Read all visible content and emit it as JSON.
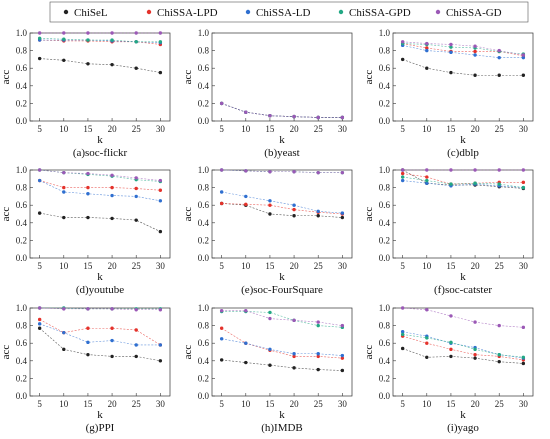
{
  "chart_data": {
    "type": "line",
    "x": [
      5,
      10,
      15,
      20,
      25,
      30
    ],
    "xlabel": "k",
    "ylabel": "acc",
    "ylim": [
      0,
      1.0
    ],
    "yticks": [
      "0.0",
      "0.2",
      "0.4",
      "0.6",
      "0.8",
      "1.0"
    ],
    "legend": {
      "placement": "top",
      "entries": [
        {
          "name": "ChiSeL",
          "color": "#222222"
        },
        {
          "name": "ChiSSA-LPD",
          "color": "#e4322b"
        },
        {
          "name": "ChiSSA-LD",
          "color": "#2f6fd0"
        },
        {
          "name": "ChiSSA-GPD",
          "color": "#22a884"
        },
        {
          "name": "ChiSSA-GD",
          "color": "#9b59b6"
        }
      ]
    },
    "panels": [
      {
        "caption": "(a)soc-flickr",
        "series": [
          {
            "name": "ChiSeL",
            "values": [
              0.71,
              0.69,
              0.65,
              0.64,
              0.6,
              0.55
            ]
          },
          {
            "name": "ChiSSA-LPD",
            "values": [
              0.92,
              0.91,
              0.91,
              0.9,
              0.9,
              0.87
            ]
          },
          {
            "name": "ChiSSA-LD",
            "values": [
              0.92,
              0.92,
              0.92,
              0.91,
              0.9,
              0.89
            ]
          },
          {
            "name": "ChiSSA-GPD",
            "values": [
              0.94,
              0.93,
              0.92,
              0.92,
              0.9,
              0.9
            ]
          },
          {
            "name": "ChiSSA-GD",
            "values": [
              1.0,
              1.0,
              1.0,
              1.0,
              1.0,
              1.0
            ]
          }
        ]
      },
      {
        "caption": "(b)yeast",
        "series": [
          {
            "name": "ChiSeL",
            "values": [
              0.2,
              0.1,
              0.06,
              0.05,
              0.04,
              0.04
            ]
          },
          {
            "name": "ChiSSA-LPD",
            "values": [
              0.2,
              0.1,
              0.06,
              0.05,
              0.04,
              0.04
            ]
          },
          {
            "name": "ChiSSA-LD",
            "values": [
              0.2,
              0.1,
              0.06,
              0.05,
              0.04,
              0.04
            ]
          },
          {
            "name": "ChiSSA-GPD",
            "values": [
              0.2,
              0.1,
              0.06,
              0.05,
              0.04,
              0.04
            ]
          },
          {
            "name": "ChiSSA-GD",
            "values": [
              0.2,
              0.1,
              0.06,
              0.05,
              0.04,
              0.04
            ]
          }
        ]
      },
      {
        "caption": "(c)dblp",
        "series": [
          {
            "name": "ChiSeL",
            "values": [
              0.7,
              0.6,
              0.55,
              0.52,
              0.52,
              0.52
            ]
          },
          {
            "name": "ChiSSA-LPD",
            "values": [
              0.88,
              0.83,
              0.79,
              0.79,
              0.79,
              0.74
            ]
          },
          {
            "name": "ChiSSA-LD",
            "values": [
              0.86,
              0.8,
              0.78,
              0.75,
              0.72,
              0.72
            ]
          },
          {
            "name": "ChiSSA-GPD",
            "values": [
              0.88,
              0.87,
              0.84,
              0.83,
              0.79,
              0.76
            ]
          },
          {
            "name": "ChiSSA-GD",
            "values": [
              0.9,
              0.88,
              0.87,
              0.85,
              0.8,
              0.75
            ]
          }
        ]
      },
      {
        "caption": "(d)youtube",
        "series": [
          {
            "name": "ChiSeL",
            "values": [
              0.51,
              0.46,
              0.46,
              0.45,
              0.43,
              0.3
            ]
          },
          {
            "name": "ChiSSA-LPD",
            "values": [
              0.88,
              0.8,
              0.8,
              0.8,
              0.79,
              0.77
            ]
          },
          {
            "name": "ChiSSA-LD",
            "values": [
              0.88,
              0.75,
              0.73,
              0.71,
              0.7,
              0.65
            ]
          },
          {
            "name": "ChiSSA-GPD",
            "values": [
              1.0,
              0.97,
              0.95,
              0.93,
              0.89,
              0.87
            ]
          },
          {
            "name": "ChiSSA-GD",
            "values": [
              1.0,
              0.97,
              0.96,
              0.94,
              0.91,
              0.88
            ]
          }
        ]
      },
      {
        "caption": "(e)soc-FourSquare",
        "series": [
          {
            "name": "ChiSeL",
            "values": [
              0.62,
              0.6,
              0.5,
              0.48,
              0.48,
              0.46
            ]
          },
          {
            "name": "ChiSSA-LPD",
            "values": [
              0.62,
              0.61,
              0.6,
              0.55,
              0.52,
              0.5
            ]
          },
          {
            "name": "ChiSSA-LD",
            "values": [
              0.75,
              0.7,
              0.65,
              0.6,
              0.53,
              0.51
            ]
          },
          {
            "name": "ChiSSA-GPD",
            "values": [
              1.0,
              0.99,
              0.98,
              0.98,
              0.97,
              0.97
            ]
          },
          {
            "name": "ChiSSA-GD",
            "values": [
              1.0,
              0.99,
              0.98,
              0.98,
              0.97,
              0.97
            ]
          }
        ]
      },
      {
        "caption": "(f)soc-catster",
        "series": [
          {
            "name": "ChiSeL",
            "values": [
              1.0,
              0.85,
              0.83,
              0.83,
              0.81,
              0.79
            ]
          },
          {
            "name": "ChiSSA-LPD",
            "values": [
              0.96,
              0.92,
              0.84,
              0.85,
              0.86,
              0.86
            ]
          },
          {
            "name": "ChiSSA-LD",
            "values": [
              0.88,
              0.85,
              0.82,
              0.84,
              0.82,
              0.8
            ]
          },
          {
            "name": "ChiSSA-GPD",
            "values": [
              0.92,
              0.88,
              0.84,
              0.85,
              0.84,
              0.8
            ]
          },
          {
            "name": "ChiSSA-GD",
            "values": [
              1.0,
              1.0,
              1.0,
              1.0,
              1.0,
              1.0
            ]
          }
        ]
      },
      {
        "caption": "(g)PPI",
        "series": [
          {
            "name": "ChiSeL",
            "values": [
              0.77,
              0.53,
              0.47,
              0.45,
              0.45,
              0.4
            ]
          },
          {
            "name": "ChiSSA-LPD",
            "values": [
              0.87,
              0.72,
              0.77,
              0.77,
              0.75,
              0.58
            ]
          },
          {
            "name": "ChiSSA-LD",
            "values": [
              0.82,
              0.72,
              0.61,
              0.63,
              0.58,
              0.58
            ]
          },
          {
            "name": "ChiSSA-GPD",
            "values": [
              1.0,
              1.0,
              0.99,
              0.99,
              0.99,
              0.99
            ]
          },
          {
            "name": "ChiSSA-GD",
            "values": [
              1.0,
              0.99,
              0.99,
              0.99,
              0.98,
              0.98
            ]
          }
        ]
      },
      {
        "caption": "(h)IMDB",
        "series": [
          {
            "name": "ChiSeL",
            "values": [
              0.41,
              0.38,
              0.35,
              0.32,
              0.3,
              0.29
            ]
          },
          {
            "name": "ChiSSA-LPD",
            "values": [
              0.77,
              0.6,
              0.52,
              0.45,
              0.45,
              0.43
            ]
          },
          {
            "name": "ChiSSA-LD",
            "values": [
              0.65,
              0.6,
              0.53,
              0.48,
              0.48,
              0.46
            ]
          },
          {
            "name": "ChiSSA-GPD",
            "values": [
              0.96,
              0.96,
              0.95,
              0.86,
              0.8,
              0.78
            ]
          },
          {
            "name": "ChiSSA-GD",
            "values": [
              0.97,
              0.97,
              0.88,
              0.86,
              0.84,
              0.8
            ]
          }
        ]
      },
      {
        "caption": "(i)yago",
        "series": [
          {
            "name": "ChiSeL",
            "values": [
              0.54,
              0.44,
              0.45,
              0.43,
              0.39,
              0.37
            ]
          },
          {
            "name": "ChiSSA-LPD",
            "values": [
              0.68,
              0.6,
              0.53,
              0.47,
              0.45,
              0.41
            ]
          },
          {
            "name": "ChiSSA-LD",
            "values": [
              0.73,
              0.68,
              0.6,
              0.55,
              0.47,
              0.43
            ]
          },
          {
            "name": "ChiSSA-GPD",
            "values": [
              0.7,
              0.66,
              0.61,
              0.53,
              0.47,
              0.44
            ]
          },
          {
            "name": "ChiSSA-GD",
            "values": [
              1.0,
              0.98,
              0.91,
              0.84,
              0.8,
              0.78
            ]
          }
        ]
      }
    ]
  }
}
